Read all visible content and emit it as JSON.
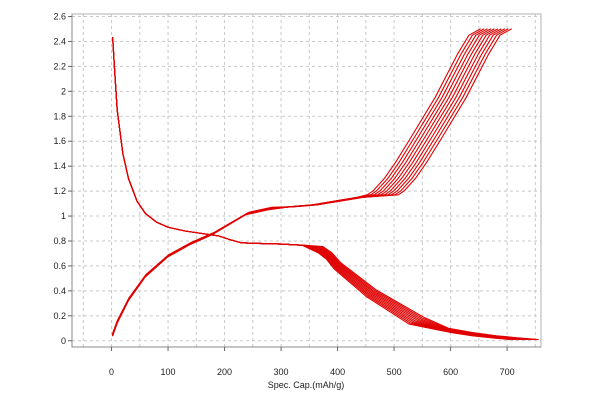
{
  "chart_data": {
    "type": "line",
    "title": "",
    "xlabel": "Spec. Cap.(mAh/g)",
    "ylabel": "",
    "xlim": [
      -70,
      760
    ],
    "ylim": [
      -0.05,
      2.62
    ],
    "x_ticks": [
      0,
      100,
      200,
      300,
      400,
      500,
      600,
      700
    ],
    "y_ticks": [
      0,
      0.2,
      0.4,
      0.6,
      0.8,
      1,
      1.2,
      1.4,
      1.6,
      1.8,
      2,
      2.2,
      2.4,
      2.6
    ],
    "x_tick_labels": [
      "0",
      "100",
      "200",
      "300",
      "400",
      "500",
      "600",
      "700"
    ],
    "y_tick_labels": [
      "0",
      "0.2",
      "0.4",
      "0.6",
      "0.8",
      "1",
      "1.2",
      "1.4",
      "1.6",
      "1.8",
      "2",
      "2.2",
      "2.4",
      "2.6"
    ],
    "grid": true,
    "legend": "none",
    "line_color": "#e00000",
    "cycle_count": 10,
    "discharge_base": {
      "x": [
        2,
        5,
        10,
        20,
        30,
        45,
        60,
        80,
        100,
        130,
        160,
        190,
        210,
        230,
        260,
        300,
        340,
        370,
        385,
        400,
        430,
        460,
        500,
        540,
        580,
        620,
        660,
        700,
        730
      ],
      "y": [
        2.43,
        2.2,
        1.85,
        1.5,
        1.3,
        1.12,
        1.02,
        0.95,
        0.91,
        0.88,
        0.86,
        0.84,
        0.81,
        0.785,
        0.78,
        0.775,
        0.765,
        0.73,
        0.68,
        0.6,
        0.49,
        0.38,
        0.27,
        0.16,
        0.1,
        0.066,
        0.04,
        0.022,
        0.01
      ]
    },
    "charge_base": {
      "x": [
        2,
        10,
        30,
        60,
        100,
        140,
        180,
        210,
        240,
        280,
        320,
        360,
        400,
        440,
        480,
        490,
        510,
        530,
        560,
        600,
        640,
        660,
        680
      ],
      "y": [
        0.05,
        0.15,
        0.33,
        0.52,
        0.68,
        0.78,
        0.86,
        0.94,
        1.02,
        1.06,
        1.075,
        1.09,
        1.12,
        1.15,
        1.17,
        1.2,
        1.3,
        1.43,
        1.65,
        1.95,
        2.3,
        2.45,
        2.5
      ]
    }
  }
}
